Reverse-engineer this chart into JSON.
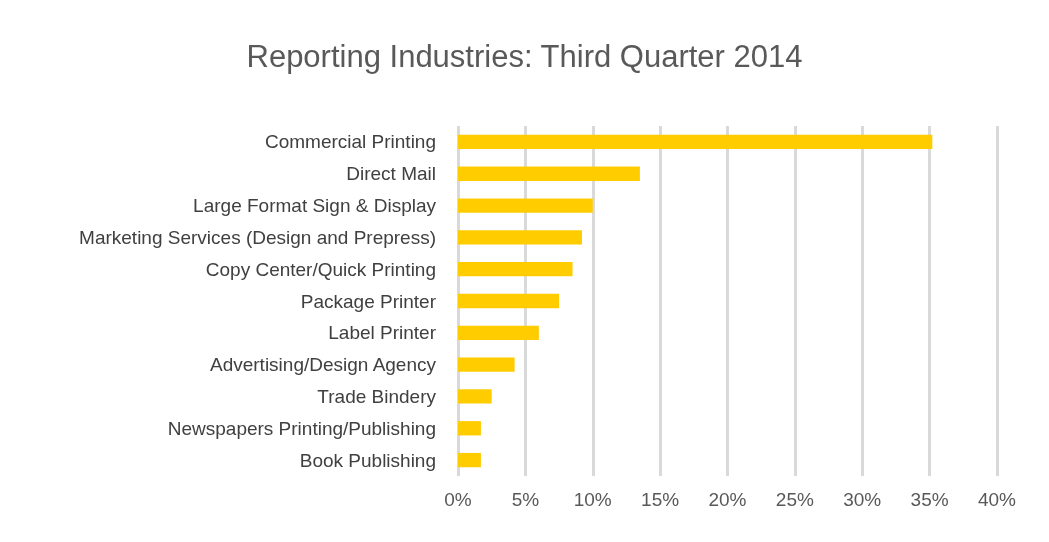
{
  "chart_data": {
    "type": "bar",
    "orientation": "horizontal",
    "title": "Reporting Industries: Third Quarter 2014",
    "categories": [
      "Commercial Printing",
      "Direct Mail",
      "Large Format Sign & Display",
      "Marketing Services (Design and Prepress)",
      "Copy Center/Quick Printing",
      "Package Printer",
      "Label Printer",
      "Advertising/Design Agency",
      "Trade Bindery",
      "Newspapers Printing/Publishing",
      "Book Publishing"
    ],
    "values": [
      35.2,
      13.5,
      10.0,
      9.2,
      8.5,
      7.5,
      6.0,
      4.2,
      2.5,
      1.7,
      1.7
    ],
    "color": "#ffcc00",
    "xlim": [
      0,
      40
    ],
    "xticks": [
      {
        "value": 0,
        "label": "0%"
      },
      {
        "value": 5,
        "label": "5%"
      },
      {
        "value": 10,
        "label": "10%"
      },
      {
        "value": 15,
        "label": "15%"
      },
      {
        "value": 20,
        "label": "20%"
      },
      {
        "value": 25,
        "label": "25%"
      },
      {
        "value": 30,
        "label": "30%"
      },
      {
        "value": 35,
        "label": "35%"
      },
      {
        "value": 40,
        "label": "40%"
      }
    ],
    "grid": "x"
  }
}
